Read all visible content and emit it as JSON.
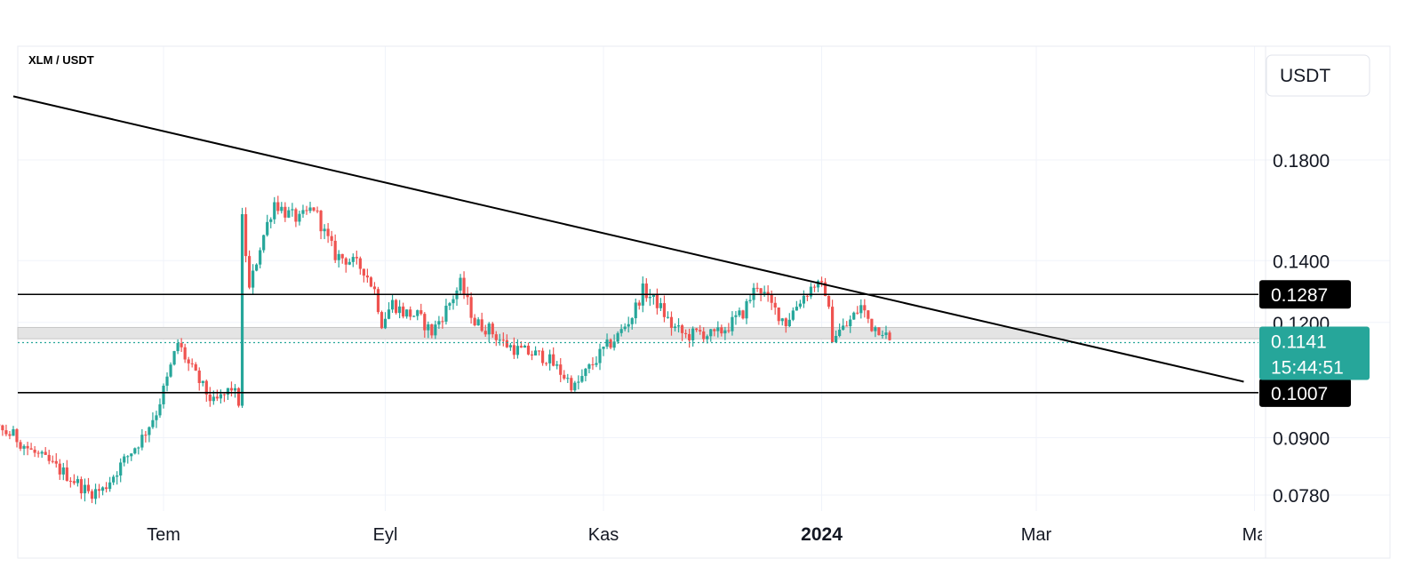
{
  "header": {
    "pair_title": "XLM / USDT",
    "currency_button": "USDT"
  },
  "colors": {
    "up": "#26a69a",
    "down": "#ef5350",
    "price_badge": "#26a69a",
    "level_badge": "#000000",
    "grid": "#f0f3fa",
    "band": "#d9d9d9"
  },
  "chart_data": {
    "type": "candlestick",
    "title": "XLM / USDT",
    "ylabel": "USDT",
    "y_ticks": [
      "0.1800",
      "0.1400",
      "0.1200",
      "0.0900",
      "0.0780"
    ],
    "y_tick_values": [
      0.18,
      0.14,
      0.12,
      0.09,
      0.078
    ],
    "x_ticks": [
      "Tem",
      "Eyl",
      "Kas",
      "2024",
      "Mar",
      "Ma"
    ],
    "x_tick_dates": [
      "2023-07-01",
      "2023-09-01",
      "2023-11-01",
      "2024-01-01",
      "2024-03-01",
      "2024-05-01"
    ],
    "last_price": "0.1141",
    "countdown": "15:44:51",
    "horizontal_levels": [
      {
        "label": "0.1287",
        "value": 0.1287
      },
      {
        "label": "0.1007",
        "value": 0.1007
      }
    ],
    "support_band": {
      "low": 0.1152,
      "high": 0.1185
    },
    "trendline": {
      "from": {
        "date": "2023-05-20",
        "price": 0.211
      },
      "to": {
        "date": "2024-04-28",
        "price": 0.1035
      }
    },
    "price_path": [
      [
        "2023-05-01",
        0.088
      ],
      [
        "2023-05-05",
        0.087
      ],
      [
        "2023-05-10",
        0.089
      ],
      [
        "2023-05-15",
        0.092
      ],
      [
        "2023-05-20",
        0.0905
      ],
      [
        "2023-05-25",
        0.087
      ],
      [
        "2023-05-30",
        0.0845
      ],
      [
        "2023-06-05",
        0.0815
      ],
      [
        "2023-06-10",
        0.0785
      ],
      [
        "2023-06-14",
        0.079
      ],
      [
        "2023-06-20",
        0.085
      ],
      [
        "2023-06-25",
        0.09
      ],
      [
        "2023-06-29",
        0.096
      ],
      [
        "2023-07-02",
        0.104
      ],
      [
        "2023-07-05",
        0.114
      ],
      [
        "2023-07-08",
        0.108
      ],
      [
        "2023-07-12",
        0.102
      ],
      [
        "2023-07-15",
        0.098
      ],
      [
        "2023-07-18",
        0.1
      ],
      [
        "2023-07-20",
        0.102
      ],
      [
        "2023-07-22",
        0.0985
      ],
      [
        "2023-07-23",
        0.155
      ],
      [
        "2023-07-25",
        0.13
      ],
      [
        "2023-07-28",
        0.145
      ],
      [
        "2023-08-01",
        0.162
      ],
      [
        "2023-08-04",
        0.158
      ],
      [
        "2023-08-08",
        0.155
      ],
      [
        "2023-08-12",
        0.16
      ],
      [
        "2023-08-15",
        0.15
      ],
      [
        "2023-08-18",
        0.142
      ],
      [
        "2023-08-22",
        0.14
      ],
      [
        "2023-08-26",
        0.137
      ],
      [
        "2023-08-29",
        0.13
      ],
      [
        "2023-08-31",
        0.12
      ],
      [
        "2023-09-03",
        0.126
      ],
      [
        "2023-09-06",
        0.123
      ],
      [
        "2023-09-10",
        0.122
      ],
      [
        "2023-09-14",
        0.117
      ],
      [
        "2023-09-18",
        0.124
      ],
      [
        "2023-09-22",
        0.132
      ],
      [
        "2023-09-26",
        0.12
      ],
      [
        "2023-09-30",
        0.118
      ],
      [
        "2023-10-04",
        0.114
      ],
      [
        "2023-10-08",
        0.112
      ],
      [
        "2023-10-12",
        0.111
      ],
      [
        "2023-10-16",
        0.11
      ],
      [
        "2023-10-20",
        0.106
      ],
      [
        "2023-10-24",
        0.102
      ],
      [
        "2023-10-28",
        0.107
      ],
      [
        "2023-11-01",
        0.112
      ],
      [
        "2023-11-05",
        0.116
      ],
      [
        "2023-11-09",
        0.122
      ],
      [
        "2023-11-12",
        0.13
      ],
      [
        "2023-11-16",
        0.126
      ],
      [
        "2023-11-20",
        0.119
      ],
      [
        "2023-11-24",
        0.116
      ],
      [
        "2023-11-28",
        0.117
      ],
      [
        "2023-12-02",
        0.116
      ],
      [
        "2023-12-06",
        0.119
      ],
      [
        "2023-12-10",
        0.123
      ],
      [
        "2023-12-14",
        0.132
      ],
      [
        "2023-12-18",
        0.125
      ],
      [
        "2023-12-22",
        0.12
      ],
      [
        "2023-12-26",
        0.127
      ],
      [
        "2023-12-30",
        0.132
      ],
      [
        "2024-01-02",
        0.13
      ],
      [
        "2024-01-04",
        0.116
      ],
      [
        "2024-01-08",
        0.119
      ],
      [
        "2024-01-12",
        0.125
      ],
      [
        "2024-01-15",
        0.119
      ],
      [
        "2024-01-18",
        0.118
      ],
      [
        "2024-01-20",
        0.1141
      ]
    ]
  }
}
